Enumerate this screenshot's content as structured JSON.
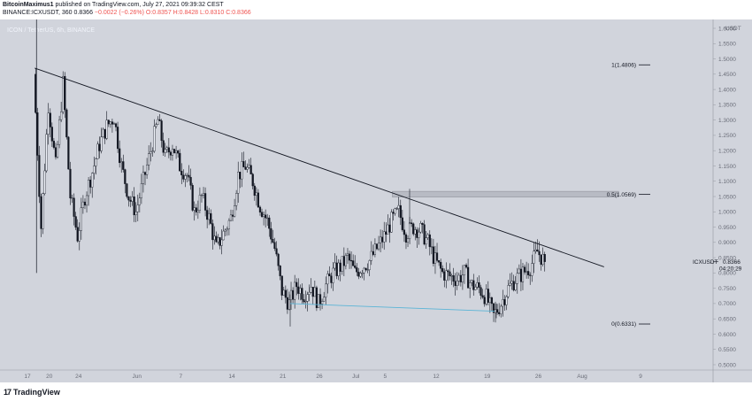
{
  "header": {
    "publisher": "BitcoinMaximus1",
    "published_text": "published on TradingView.com, July 27, 2021 09:39:32 CEST",
    "symbol_interval": "BINANCE:ICXUSDT, 360",
    "last": "0.8366",
    "change": "−0.0022 (−0.26%)",
    "ohlc": "O:0.8357 H:0.8428 L:0.8310 C:0.8366"
  },
  "legend": "ICON / TetherUS, 6h, BINANCE",
  "axis_unit": "USDT",
  "footer_brand": "TradingView",
  "colors": {
    "background": "#d1d4dc",
    "candles": "#131722",
    "trendline": "#131722",
    "support": "#5ab4d6",
    "zone": "#b8bbc4"
  },
  "chart_data": {
    "type": "candlestick",
    "series": [
      {
        "symbol": "ICXUSDT",
        "exchange": "BINANCE",
        "timeframe": "6h"
      }
    ],
    "y_ticks": [
      "1.6000",
      "1.5500",
      "1.5000",
      "1.4500",
      "1.4000",
      "1.3500",
      "1.3000",
      "1.2500",
      "1.2000",
      "1.1500",
      "1.1000",
      "1.0500",
      "1.0000",
      "0.9500",
      "0.9000",
      "0.8500",
      "0.8000",
      "0.7500",
      "0.7000",
      "0.6500",
      "0.6000",
      "0.5500",
      "0.5000"
    ],
    "x_ticks": [
      "17",
      "20",
      "24",
      "Jun",
      "7",
      "14",
      "21",
      "26",
      "Jul",
      "5",
      "12",
      "19",
      "26",
      "Aug",
      "9"
    ],
    "ylim": [
      0.47,
      1.63
    ],
    "close_price_path": [
      [
        "May 18",
        1.45
      ],
      [
        "May 19",
        0.95
      ],
      [
        "May 20",
        1.35
      ],
      [
        "May 21",
        1.15
      ],
      [
        "May 22",
        1.42
      ],
      [
        "May 23",
        1.05
      ],
      [
        "May 24",
        0.92
      ],
      [
        "May 25",
        1.05
      ],
      [
        "May 26",
        1.13
      ],
      [
        "May 27",
        1.22
      ],
      [
        "May 28",
        1.28
      ],
      [
        "May 29",
        1.31
      ],
      [
        "May 30",
        1.15
      ],
      [
        "May 31",
        1.05
      ],
      [
        "Jun 1",
        1.0
      ],
      [
        "Jun 2",
        1.1
      ],
      [
        "Jun 3",
        1.2
      ],
      [
        "Jun 4",
        1.3
      ],
      [
        "Jun 5",
        1.18
      ],
      [
        "Jun 6",
        1.22
      ],
      [
        "Jun 7",
        1.15
      ],
      [
        "Jun 8",
        1.12
      ],
      [
        "Jun 9",
        1.0
      ],
      [
        "Jun 10",
        1.05
      ],
      [
        "Jun 11",
        0.98
      ],
      [
        "Jun 12",
        0.88
      ],
      [
        "Jun 13",
        0.93
      ],
      [
        "Jun 14",
        0.98
      ],
      [
        "Jun 15",
        1.12
      ],
      [
        "Jun 16",
        1.15
      ],
      [
        "Jun 17",
        1.1
      ],
      [
        "Jun 18",
        1.02
      ],
      [
        "Jun 19",
        0.97
      ],
      [
        "Jun 20",
        0.88
      ],
      [
        "Jun 21",
        0.74
      ],
      [
        "Jun 22",
        0.7
      ],
      [
        "Jun 23",
        0.76
      ],
      [
        "Jun 24",
        0.73
      ],
      [
        "Jun 25",
        0.76
      ],
      [
        "Jun 26",
        0.7
      ],
      [
        "Jun 27",
        0.76
      ],
      [
        "Jun 28",
        0.8
      ],
      [
        "Jun 29",
        0.82
      ],
      [
        "Jun 30",
        0.85
      ],
      [
        "Jul 1",
        0.8
      ],
      [
        "Jul 2",
        0.82
      ],
      [
        "Jul 3",
        0.84
      ],
      [
        "Jul 4",
        0.88
      ],
      [
        "Jul 5",
        0.92
      ],
      [
        "Jul 6",
        0.97
      ],
      [
        "Jul 7",
        1.0
      ],
      [
        "Jul 8",
        0.93
      ],
      [
        "Jul 9",
        0.95
      ],
      [
        "Jul 10",
        0.94
      ],
      [
        "Jul 11",
        0.9
      ],
      [
        "Jul 12",
        0.84
      ],
      [
        "Jul 13",
        0.8
      ],
      [
        "Jul 14",
        0.79
      ],
      [
        "Jul 15",
        0.78
      ],
      [
        "Jul 16",
        0.8
      ],
      [
        "Jul 17",
        0.76
      ],
      [
        "Jul 18",
        0.75
      ],
      [
        "Jul 19",
        0.72
      ],
      [
        "Jul 20",
        0.66
      ],
      [
        "Jul 21",
        0.7
      ],
      [
        "Jul 22",
        0.75
      ],
      [
        "Jul 23",
        0.78
      ],
      [
        "Jul 24",
        0.8
      ],
      [
        "Jul 25",
        0.82
      ],
      [
        "Jul 26",
        0.87
      ],
      [
        "Jul 27",
        0.8366
      ]
    ],
    "annotations": {
      "descending_resistance": {
        "from": [
          "May 18",
          1.47
        ],
        "to": [
          "Aug 4",
          0.82
        ]
      },
      "support_line": {
        "from": [
          "Jun 22",
          0.7
        ],
        "to": [
          "Jul 20",
          0.675
        ]
      },
      "resistance_zone": {
        "from": "Jul 6",
        "to": "Aug 6",
        "low": 1.048,
        "high": 1.067
      },
      "fib_levels": [
        {
          "label": "1(1.4806)",
          "value": 1.4806
        },
        {
          "label": "0.5(1.0569)",
          "value": 1.0569
        },
        {
          "label": "0(0.6331)",
          "value": 0.6331
        }
      ],
      "price_label": {
        "symbol": "ICXUSDT",
        "price": "0.8366",
        "countdown": "04:20:29"
      }
    }
  }
}
